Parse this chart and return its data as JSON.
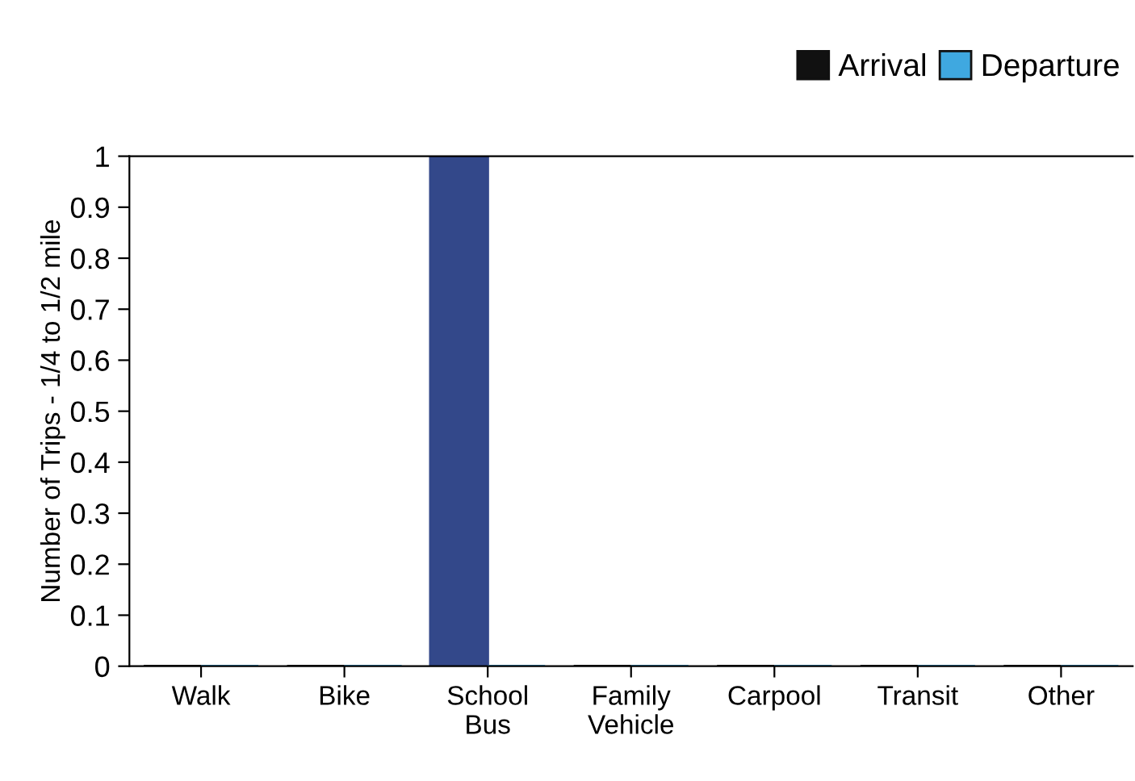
{
  "chart_data": {
    "type": "bar",
    "ylabel": "Number of Trips - 1/4 to 1/2 mile",
    "categories": [
      "Walk",
      "Bike",
      "School\nBus",
      "Family\nVehicle",
      "Carpool",
      "Transit",
      "Other"
    ],
    "series": [
      {
        "name": "Arrival",
        "color": "#111111",
        "colors": [
          "#111111",
          "#111111",
          "#33488a",
          "#111111",
          "#111111",
          "#111111",
          "#111111"
        ],
        "values": [
          0,
          0,
          1,
          0,
          0,
          0,
          0
        ]
      },
      {
        "name": "Departure",
        "color": "#3fa8e0",
        "values": [
          0,
          0,
          0,
          0,
          0,
          0,
          0
        ]
      }
    ],
    "ylim": [
      0,
      1
    ],
    "yticks": [
      0,
      0.1,
      0.2,
      0.3,
      0.4,
      0.5,
      0.6,
      0.7,
      0.8,
      0.9,
      1
    ],
    "grid": false,
    "legend": "top right"
  }
}
